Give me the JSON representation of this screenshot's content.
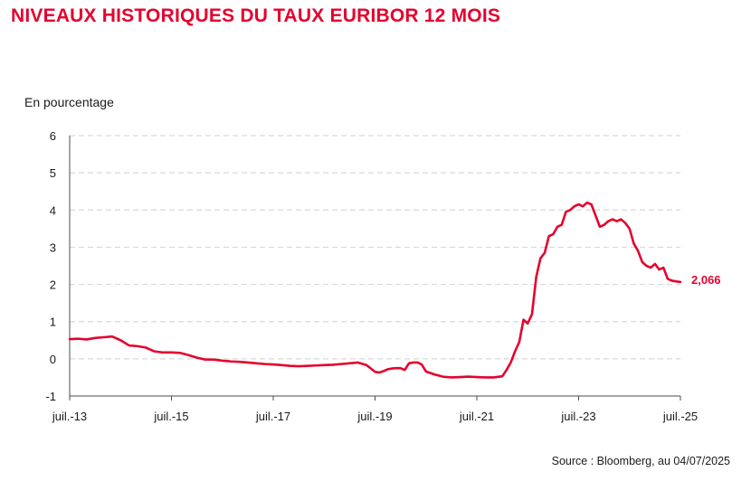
{
  "chart_data": {
    "type": "line",
    "title": "NIVEAUX HISTORIQUES DU TAUX EURIBOR 12 MOIS",
    "ylabel": "En pourcentage",
    "xlabel": "",
    "source": "Source : Bloomberg, au 04/07/2025",
    "ylim": [
      -1,
      6
    ],
    "y_ticks": [
      -1,
      0,
      1,
      2,
      3,
      4,
      5,
      6
    ],
    "y_tick_labels": [
      "-1",
      "0",
      "1",
      "2",
      "3",
      "4",
      "5",
      "6"
    ],
    "xlim": [
      "2013-07",
      "2025-07"
    ],
    "x_ticks": [
      "2013-07",
      "2015-07",
      "2017-07",
      "2019-07",
      "2021-07",
      "2023-07",
      "2025-07"
    ],
    "x_tick_labels": [
      "juil.-13",
      "juil.-15",
      "juil.-17",
      "juil.-19",
      "juil.-21",
      "juil.-23",
      "juil.-25"
    ],
    "grid": "horizontal dashed",
    "end_label": "2,066",
    "colors": {
      "series": "#e4032e",
      "title": "#e4032e",
      "grid": "#d9d9d9",
      "axis": "#4d4d4d"
    },
    "series": [
      {
        "x": [
          "2013-07",
          "2013-09",
          "2013-11",
          "2014-01",
          "2014-03",
          "2014-05",
          "2014-07",
          "2014-09",
          "2014-11",
          "2015-01",
          "2015-03",
          "2015-05",
          "2015-07",
          "2015-09",
          "2015-11",
          "2016-01",
          "2016-03",
          "2016-05",
          "2016-07",
          "2016-09",
          "2016-11",
          "2017-01",
          "2017-03",
          "2017-05",
          "2017-07",
          "2017-09",
          "2017-11",
          "2018-01",
          "2018-03",
          "2018-05",
          "2018-07",
          "2018-09",
          "2018-11",
          "2019-01",
          "2019-03",
          "2019-05",
          "2019-07",
          "2019-08",
          "2019-09",
          "2019-10",
          "2019-11",
          "2019-12",
          "2020-01",
          "2020-02",
          "2020-03",
          "2020-04",
          "2020-05",
          "2020-06",
          "2020-07",
          "2020-09",
          "2020-11",
          "2021-01",
          "2021-03",
          "2021-05",
          "2021-07",
          "2021-09",
          "2021-11",
          "2022-01",
          "2022-02",
          "2022-03",
          "2022-04",
          "2022-05",
          "2022-06",
          "2022-07",
          "2022-08",
          "2022-09",
          "2022-10",
          "2022-11",
          "2022-12",
          "2023-01",
          "2023-02",
          "2023-03",
          "2023-04",
          "2023-05",
          "2023-06",
          "2023-07",
          "2023-08",
          "2023-09",
          "2023-10",
          "2023-11",
          "2023-12",
          "2024-01",
          "2024-02",
          "2024-03",
          "2024-04",
          "2024-05",
          "2024-06",
          "2024-07",
          "2024-08",
          "2024-09",
          "2024-10",
          "2024-11",
          "2024-12",
          "2025-01",
          "2025-02",
          "2025-03",
          "2025-04",
          "2025-05",
          "2025-06",
          "2025-07"
        ],
        "values": [
          0.53,
          0.54,
          0.52,
          0.56,
          0.58,
          0.6,
          0.5,
          0.36,
          0.34,
          0.3,
          0.2,
          0.17,
          0.17,
          0.16,
          0.1,
          0.03,
          -0.02,
          -0.02,
          -0.05,
          -0.07,
          -0.08,
          -0.1,
          -0.12,
          -0.14,
          -0.15,
          -0.17,
          -0.19,
          -0.2,
          -0.19,
          -0.18,
          -0.17,
          -0.16,
          -0.14,
          -0.12,
          -0.1,
          -0.17,
          -0.35,
          -0.37,
          -0.33,
          -0.28,
          -0.26,
          -0.25,
          -0.25,
          -0.3,
          -0.12,
          -0.1,
          -0.1,
          -0.15,
          -0.34,
          -0.42,
          -0.48,
          -0.5,
          -0.49,
          -0.48,
          -0.49,
          -0.5,
          -0.5,
          -0.47,
          -0.3,
          -0.1,
          0.2,
          0.45,
          1.05,
          0.95,
          1.2,
          2.2,
          2.7,
          2.85,
          3.3,
          3.35,
          3.55,
          3.6,
          3.95,
          4.0,
          4.1,
          4.15,
          4.1,
          4.2,
          4.15,
          3.85,
          3.55,
          3.6,
          3.7,
          3.75,
          3.7,
          3.75,
          3.65,
          3.5,
          3.1,
          2.9,
          2.6,
          2.5,
          2.45,
          2.55,
          2.4,
          2.45,
          2.15,
          2.1,
          2.08,
          2.066
        ]
      }
    ]
  }
}
